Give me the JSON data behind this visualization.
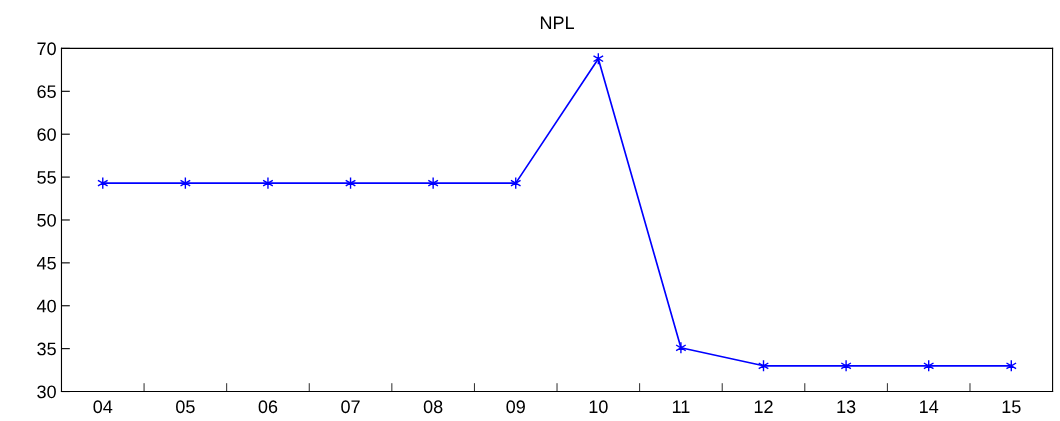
{
  "chart_data": {
    "type": "line",
    "title": "NPL",
    "categories": [
      "04",
      "05",
      "06",
      "07",
      "08",
      "09",
      "10",
      "11",
      "12",
      "13",
      "14",
      "15"
    ],
    "series": [
      {
        "color": "#0000ff",
        "values": [
          54.3,
          54.3,
          54.3,
          54.3,
          54.3,
          54.3,
          68.8,
          35.1,
          33.0,
          33.0,
          33.0,
          33.0
        ]
      }
    ],
    "ylim": [
      30,
      70
    ],
    "yticks": [
      30,
      35,
      40,
      45,
      50,
      55,
      60,
      65,
      70
    ],
    "marker": "cross",
    "line_style": "solid",
    "grid": false,
    "legend": false
  }
}
